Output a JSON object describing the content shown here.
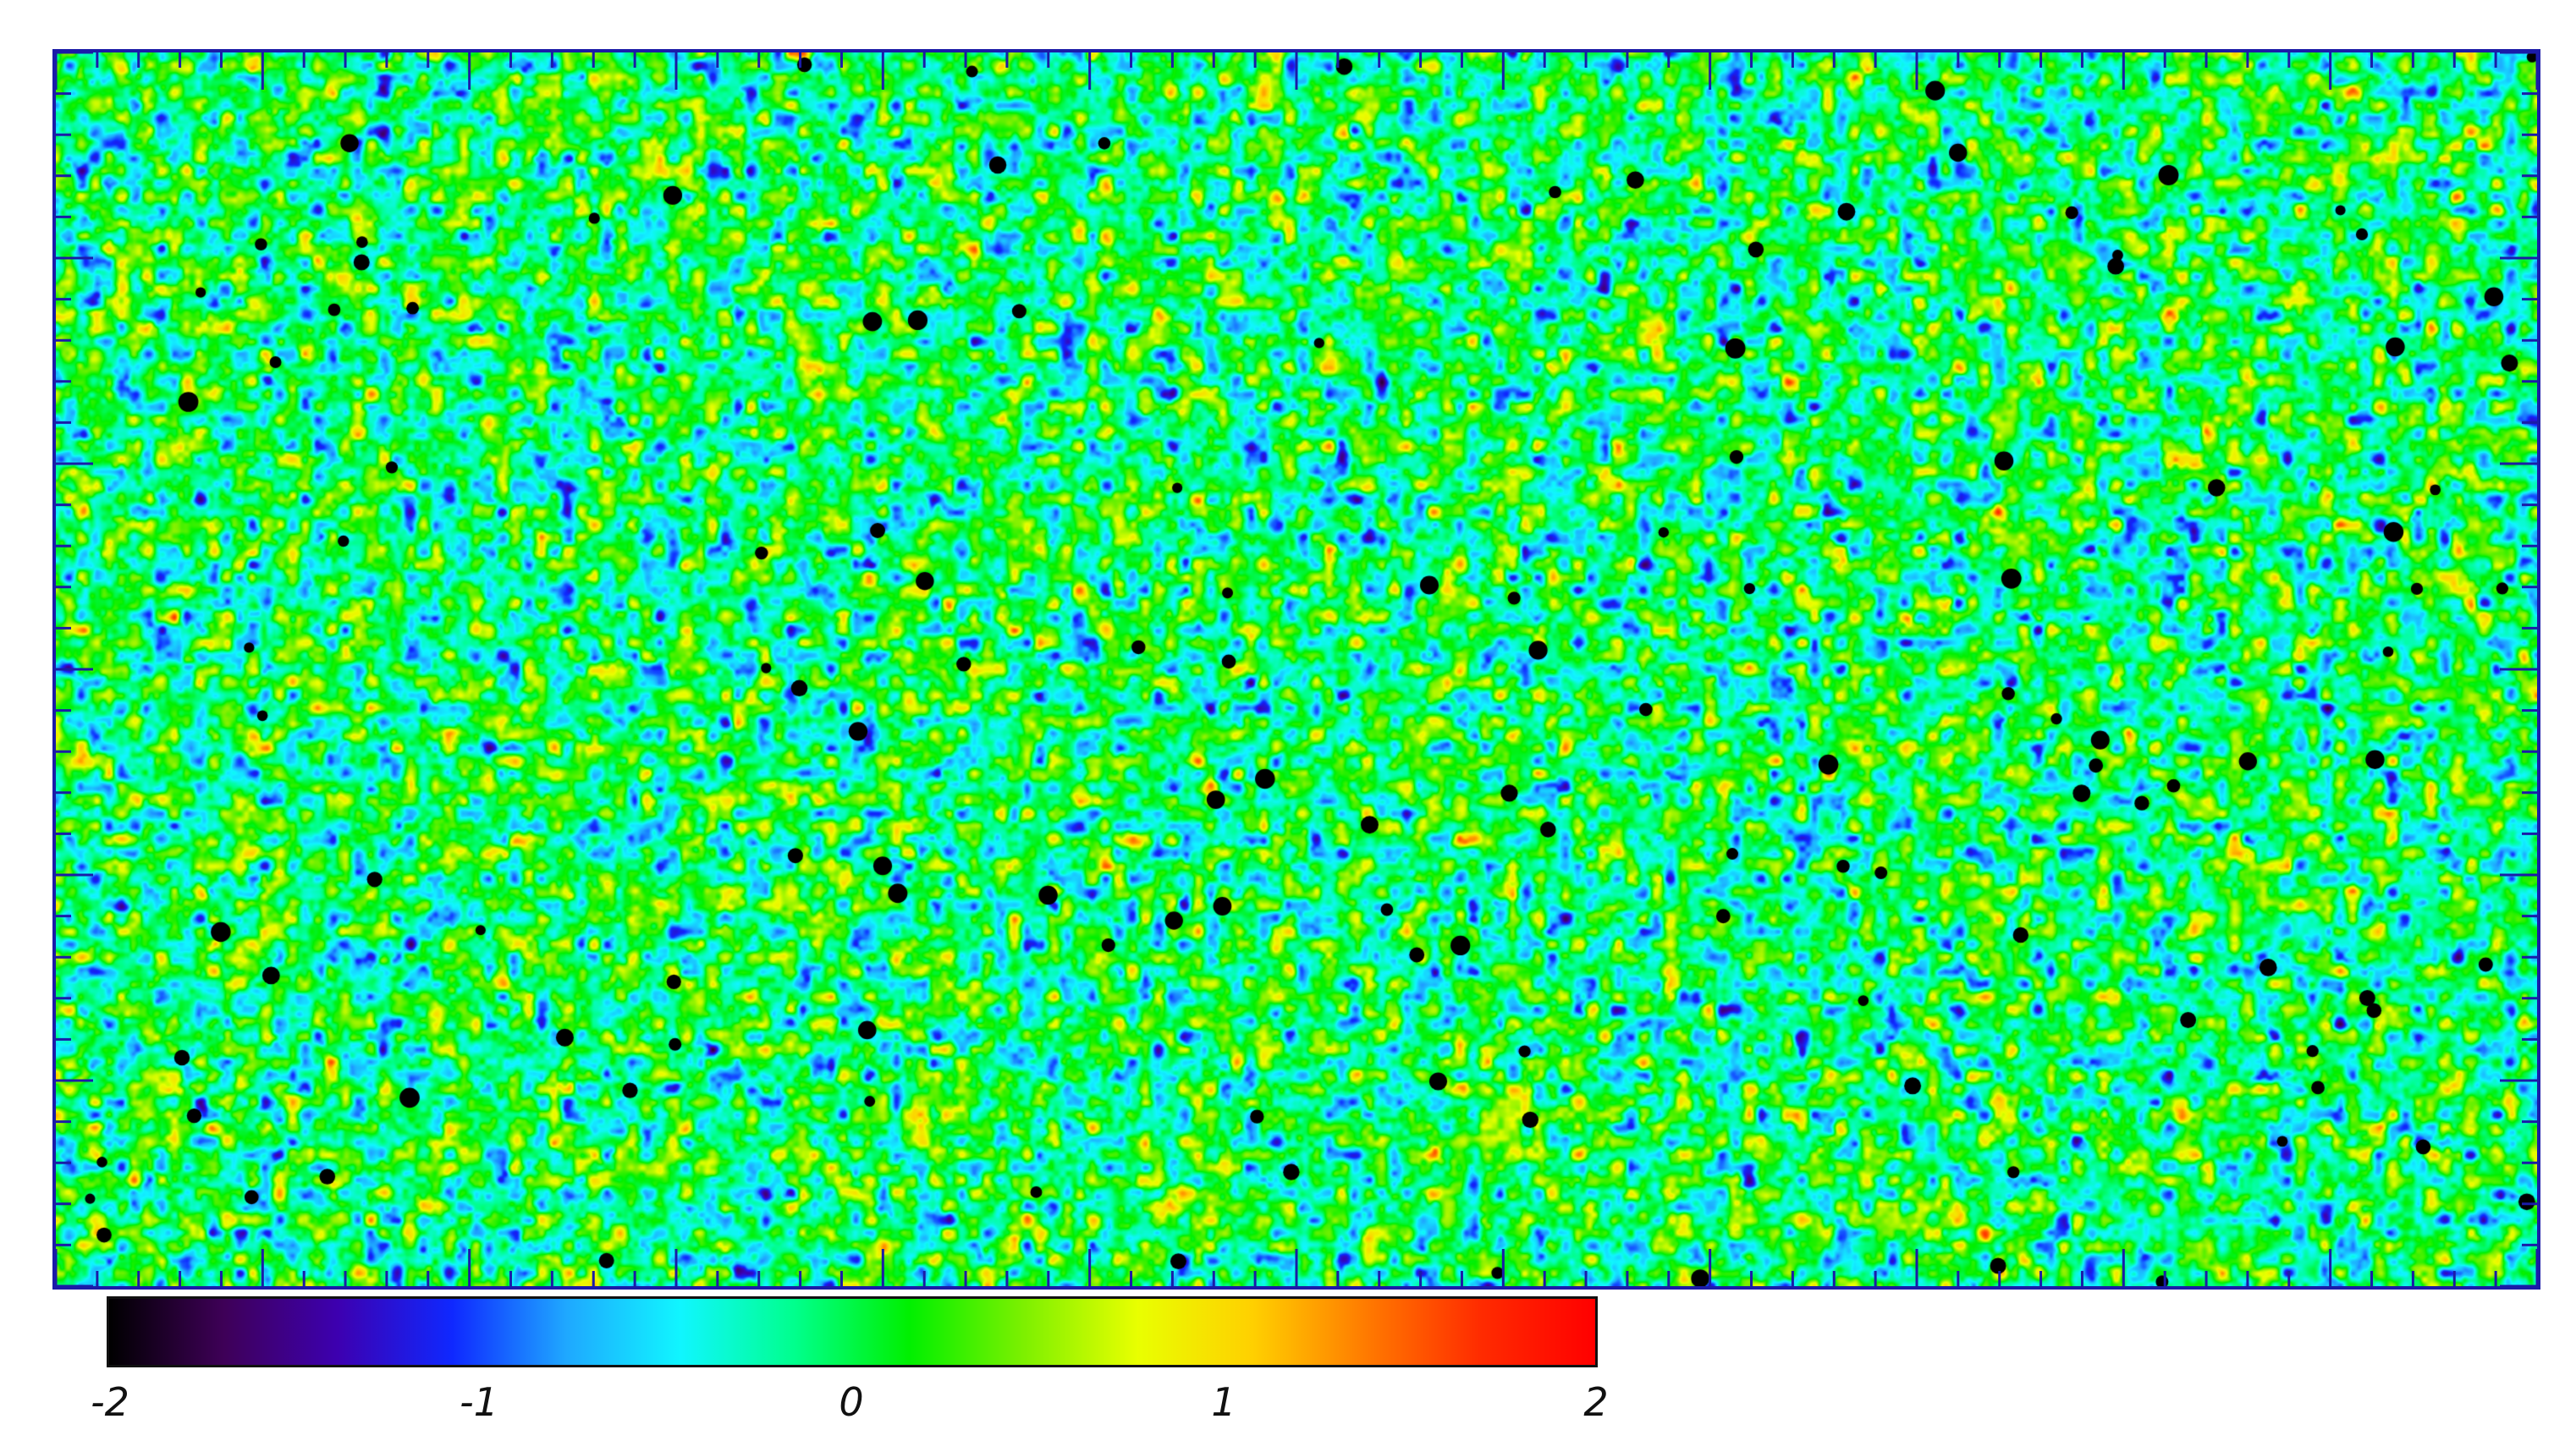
{
  "image": {
    "kind": "sky noise map with masked point sources",
    "colormap": "rainbow",
    "frame_color": "#1b1ba8",
    "mask_color": "#000000"
  },
  "colorbar": {
    "min": -2,
    "max": 2,
    "tick_labels": [
      "-2",
      "-1",
      "0",
      "1",
      "2"
    ],
    "colors": [
      "#000000",
      "#3e0057",
      "#3d00b0",
      "#0f28ff",
      "#1fa8ff",
      "#10f6ff",
      "#00ff8c",
      "#00f000",
      "#7df000",
      "#e9ff00",
      "#ffd000",
      "#ff7a00",
      "#ff2b00",
      "#ff0000"
    ]
  },
  "masked_sources": {
    "count": 140
  }
}
